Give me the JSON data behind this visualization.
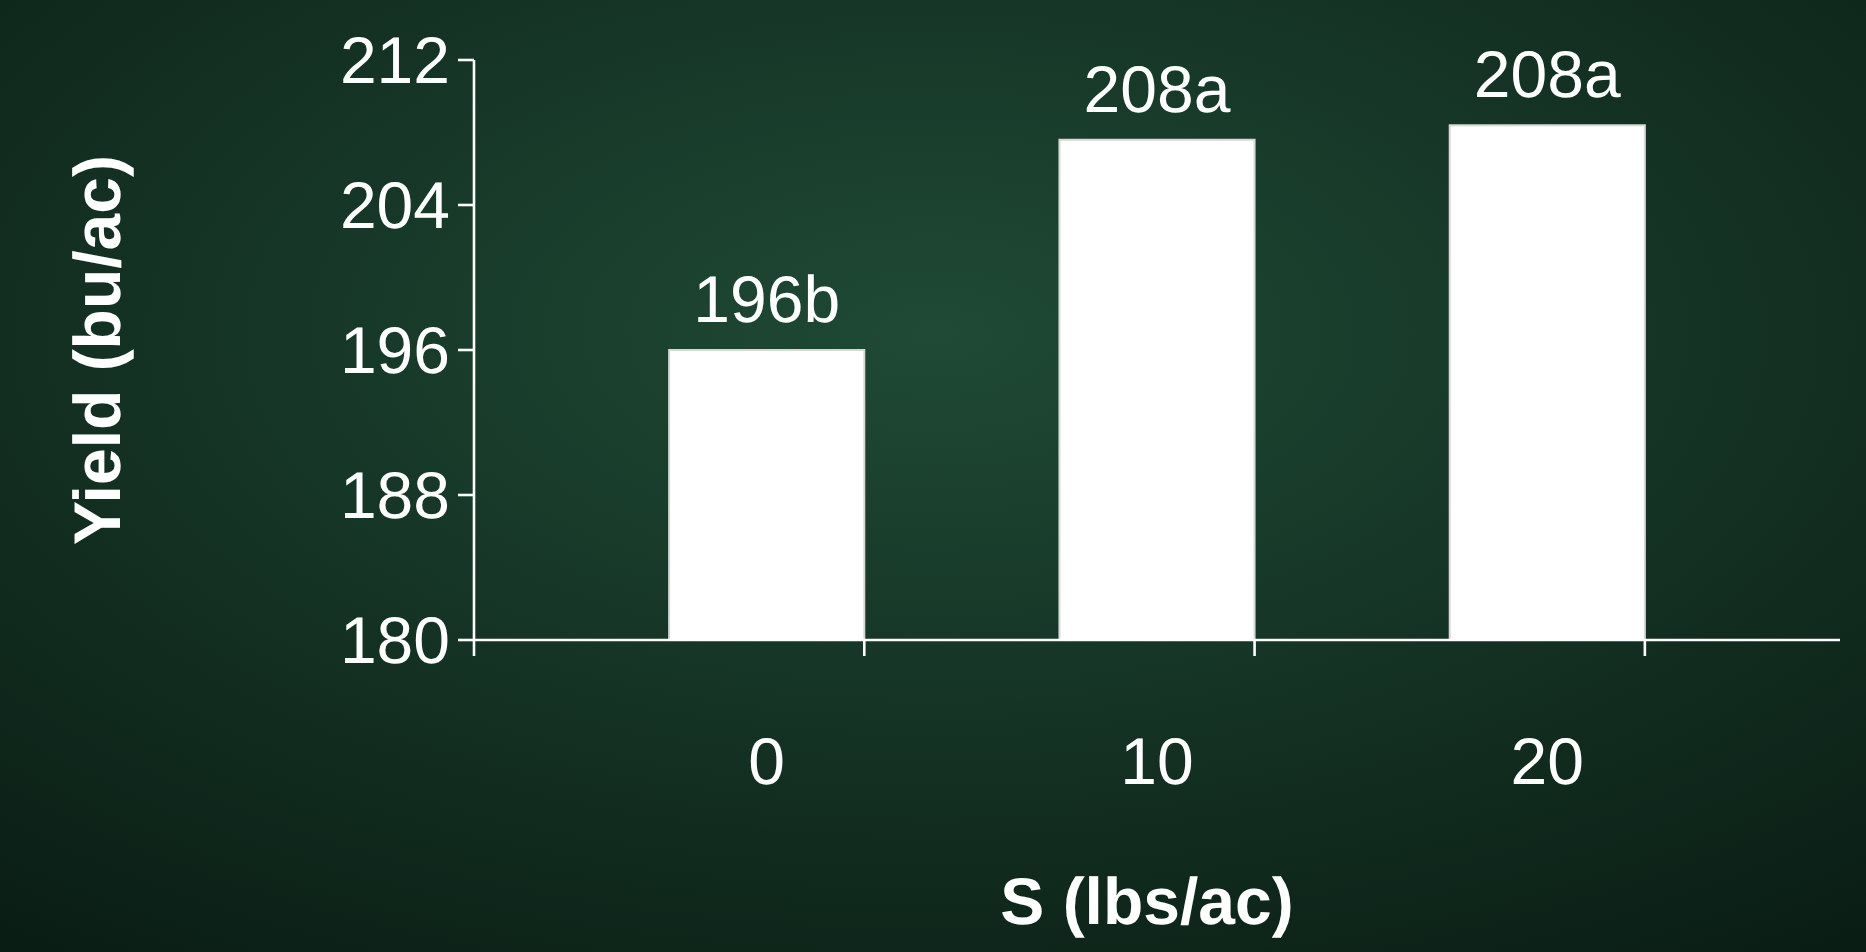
{
  "chart_data": {
    "type": "bar",
    "xlabel": "S (lbs/ac)",
    "ylabel": "Yield (bu/ac)",
    "categories": [
      "0",
      "10",
      "20"
    ],
    "values": [
      196,
      207.6,
      208.4
    ],
    "color": "#ffffff",
    "value_labels": [
      "196b",
      "208a",
      "208a"
    ],
    "ylim": [
      180,
      212
    ],
    "yticks": [
      180,
      188,
      196,
      204,
      212
    ],
    "grid": false
  }
}
